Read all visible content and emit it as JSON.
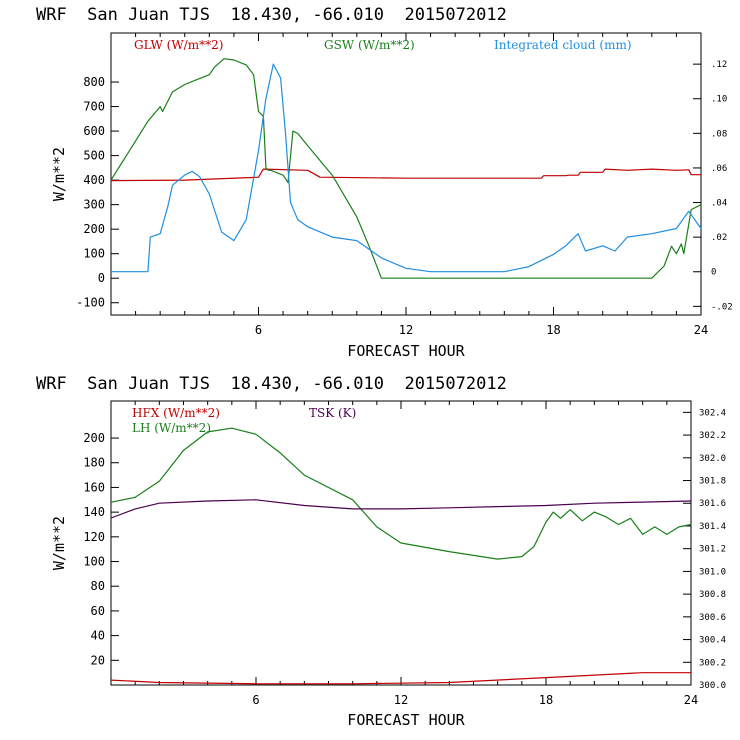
{
  "chart_data": [
    {
      "type": "line",
      "title": "WRF  San Juan TJS  18.430, -66.010  2015072012",
      "xlabel": "FORECAST HOUR",
      "ylabel": "W/m**2",
      "xlim": [
        0,
        24
      ],
      "ylim": [
        -150,
        1000
      ],
      "x_ticks": [
        6,
        12,
        18,
        24
      ],
      "y_ticks": [
        -100,
        0,
        100,
        200,
        300,
        400,
        500,
        600,
        700,
        800
      ],
      "y2lim": [
        -0.025,
        0.138
      ],
      "y2_ticks": [
        -0.02,
        0,
        0.02,
        0.04,
        0.06,
        0.08,
        0.1,
        0.12
      ],
      "y2_tick_labels": [
        "-.02",
        "0",
        ".02",
        ".04",
        ".06",
        ".08",
        ".10",
        ".12"
      ],
      "series": [
        {
          "name": "GLW (W/m**2)",
          "axis": "left",
          "color": "#c00000",
          "points": [
            [
              0,
              398
            ],
            [
              3,
              400
            ],
            [
              6,
              412
            ],
            [
              6.2,
              445
            ],
            [
              8,
              440
            ],
            [
              8.5,
              412
            ],
            [
              12,
              408
            ],
            [
              17.5,
              408
            ],
            [
              17.6,
              418
            ],
            [
              18.5,
              418
            ],
            [
              18.6,
              420
            ],
            [
              19,
              420
            ],
            [
              19.1,
              432
            ],
            [
              20,
              432
            ],
            [
              20.1,
              445
            ],
            [
              21,
              440
            ],
            [
              22,
              445
            ],
            [
              23,
              440
            ],
            [
              23.5,
              442
            ],
            [
              23.6,
              422
            ],
            [
              24,
              422
            ]
          ]
        },
        {
          "name": "GSW (W/m**2)",
          "axis": "left",
          "color": "#1a7f1a",
          "points": [
            [
              0,
              400
            ],
            [
              0.5,
              480
            ],
            [
              1,
              560
            ],
            [
              1.5,
              640
            ],
            [
              2,
              700
            ],
            [
              2.1,
              680
            ],
            [
              2.5,
              760
            ],
            [
              3,
              790
            ],
            [
              3.5,
              810
            ],
            [
              4,
              830
            ],
            [
              4.2,
              860
            ],
            [
              4.6,
              895
            ],
            [
              5,
              890
            ],
            [
              5.5,
              870
            ],
            [
              5.8,
              830
            ],
            [
              6,
              680
            ],
            [
              6.2,
              660
            ],
            [
              6.3,
              450
            ],
            [
              6.4,
              440
            ],
            [
              6.5,
              440
            ],
            [
              7,
              420
            ],
            [
              7.2,
              390
            ],
            [
              7.4,
              600
            ],
            [
              7.6,
              590
            ],
            [
              8,
              540
            ],
            [
              9,
              420
            ],
            [
              10,
              250
            ],
            [
              10.5,
              130
            ],
            [
              11,
              0
            ],
            [
              12,
              0
            ],
            [
              16,
              0
            ],
            [
              20,
              0
            ],
            [
              22,
              0
            ],
            [
              22.5,
              50
            ],
            [
              22.8,
              130
            ],
            [
              23,
              100
            ],
            [
              23.2,
              140
            ],
            [
              23.3,
              100
            ],
            [
              23.6,
              280
            ],
            [
              24,
              300
            ]
          ]
        },
        {
          "name": "Integrated cloud (mm)",
          "axis": "right",
          "color": "#1f8fe0",
          "points": [
            [
              0,
              0
            ],
            [
              1.5,
              0
            ],
            [
              1.6,
              0.02
            ],
            [
              2,
              0.022
            ],
            [
              2.3,
              0.037
            ],
            [
              2.5,
              0.05
            ],
            [
              3,
              0.056
            ],
            [
              3.3,
              0.058
            ],
            [
              3.6,
              0.055
            ],
            [
              4,
              0.045
            ],
            [
              4.5,
              0.023
            ],
            [
              5,
              0.018
            ],
            [
              5.5,
              0.03
            ],
            [
              6,
              0.07
            ],
            [
              6.3,
              0.1
            ],
            [
              6.6,
              0.12
            ],
            [
              6.9,
              0.112
            ],
            [
              7.1,
              0.08
            ],
            [
              7.3,
              0.04
            ],
            [
              7.6,
              0.03
            ],
            [
              8,
              0.026
            ],
            [
              9,
              0.02
            ],
            [
              10,
              0.018
            ],
            [
              11,
              0.008
            ],
            [
              12,
              0.002
            ],
            [
              13,
              0.0
            ],
            [
              16,
              0.0
            ],
            [
              17,
              0.003
            ],
            [
              18,
              0.01
            ],
            [
              18.5,
              0.015
            ],
            [
              19,
              0.022
            ],
            [
              19.3,
              0.012
            ],
            [
              20,
              0.015
            ],
            [
              20.5,
              0.012
            ],
            [
              21,
              0.02
            ],
            [
              22,
              0.022
            ],
            [
              23,
              0.025
            ],
            [
              23.5,
              0.035
            ],
            [
              24,
              0.025
            ]
          ]
        }
      ]
    },
    {
      "type": "line",
      "title": "WRF  San Juan TJS  18.430, -66.010  2015072012",
      "xlabel": "FORECAST HOUR",
      "ylabel": "W/m**2",
      "xlim": [
        0,
        24
      ],
      "ylim": [
        0,
        230
      ],
      "x_ticks": [
        6,
        12,
        18,
        24
      ],
      "y_ticks": [
        20,
        40,
        60,
        80,
        100,
        120,
        140,
        160,
        180,
        200
      ],
      "y2lim": [
        300.0,
        302.5
      ],
      "y2_ticks": [
        300.0,
        300.2,
        300.4,
        300.6,
        300.8,
        301.0,
        301.2,
        301.4,
        301.6,
        301.8,
        302.0,
        302.2,
        302.4
      ],
      "y2_tick_labels": [
        "300.0",
        "300.2",
        "300.4",
        "300.6",
        "300.8",
        "301.0",
        "301.2",
        "301.4",
        "301.6",
        "301.8",
        "302.0",
        "302.2",
        "302.4"
      ],
      "series": [
        {
          "name": "HFX (W/m**2)",
          "axis": "left",
          "color": "#c00000",
          "points": [
            [
              0,
              4
            ],
            [
              2,
              2
            ],
            [
              6,
              1
            ],
            [
              10,
              1
            ],
            [
              14,
              2
            ],
            [
              18,
              6
            ],
            [
              20,
              8
            ],
            [
              22,
              10
            ],
            [
              24,
              10
            ]
          ]
        },
        {
          "name": "LH  (W/m**2)",
          "axis": "left",
          "color": "#1a7f1a",
          "points": [
            [
              0,
              148
            ],
            [
              1,
              152
            ],
            [
              2,
              165
            ],
            [
              3,
              190
            ],
            [
              4,
              205
            ],
            [
              5,
              208
            ],
            [
              6,
              203
            ],
            [
              7,
              188
            ],
            [
              8,
              170
            ],
            [
              10,
              150
            ],
            [
              11,
              128
            ],
            [
              12,
              115
            ],
            [
              14,
              108
            ],
            [
              16,
              102
            ],
            [
              17,
              104
            ],
            [
              17.5,
              112
            ],
            [
              18,
              132
            ],
            [
              18.3,
              140
            ],
            [
              18.6,
              135
            ],
            [
              19,
              142
            ],
            [
              19.5,
              133
            ],
            [
              20,
              140
            ],
            [
              20.5,
              136
            ],
            [
              21,
              130
            ],
            [
              21.5,
              135
            ],
            [
              22,
              122
            ],
            [
              22.5,
              128
            ],
            [
              23,
              122
            ],
            [
              23.5,
              128
            ],
            [
              24,
              130
            ]
          ]
        },
        {
          "name": "TSK (K)",
          "axis": "right",
          "color": "#4a0050",
          "points": [
            [
              0,
              301.47
            ],
            [
              1,
              301.55
            ],
            [
              2,
              301.6
            ],
            [
              4,
              301.62
            ],
            [
              6,
              301.63
            ],
            [
              8,
              301.58
            ],
            [
              10,
              301.55
            ],
            [
              12,
              301.55
            ],
            [
              14,
              301.56
            ],
            [
              16,
              301.57
            ],
            [
              18,
              301.58
            ],
            [
              20,
              301.6
            ],
            [
              22,
              301.61
            ],
            [
              24,
              301.62
            ]
          ]
        }
      ]
    }
  ]
}
